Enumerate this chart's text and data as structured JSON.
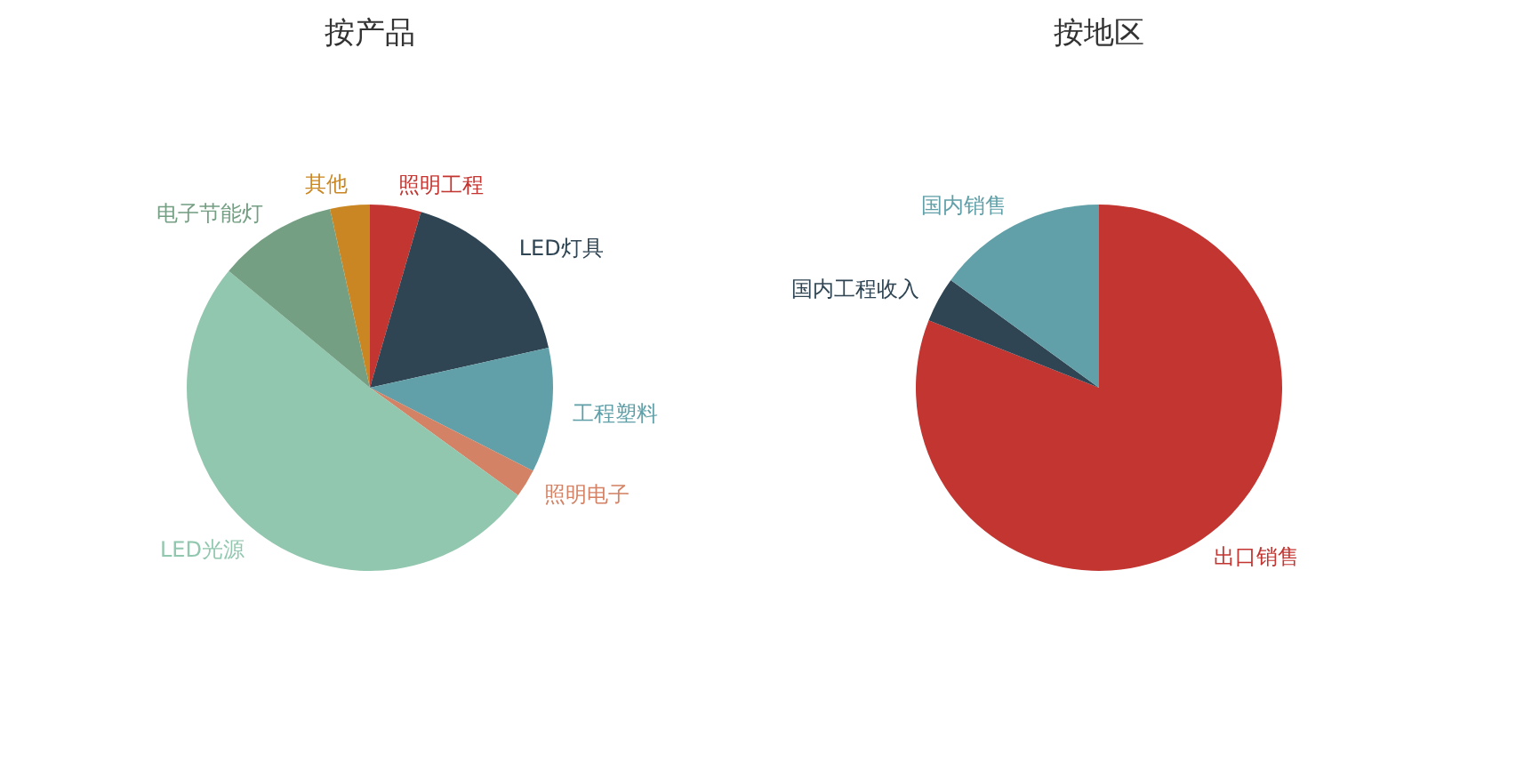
{
  "chart_data": [
    {
      "type": "pie",
      "title": "按产品",
      "categories": [
        "照明工程",
        "LED灯具",
        "工程塑料",
        "照明电子",
        "LED光源",
        "电子节能灯",
        "其他"
      ],
      "values": [
        4.5,
        17,
        11,
        2.5,
        51,
        10.5,
        3.5
      ],
      "colors": [
        "#c23531",
        "#2f4554",
        "#61a0a8",
        "#d48265",
        "#91c7ae",
        "#749f83",
        "#ca8622"
      ]
    },
    {
      "type": "pie",
      "title": "按地区",
      "categories": [
        "出口销售",
        "国内工程收入",
        "国内销售"
      ],
      "values": [
        81,
        4,
        15
      ],
      "colors": [
        "#c23531",
        "#2f4554",
        "#61a0a8"
      ]
    }
  ]
}
